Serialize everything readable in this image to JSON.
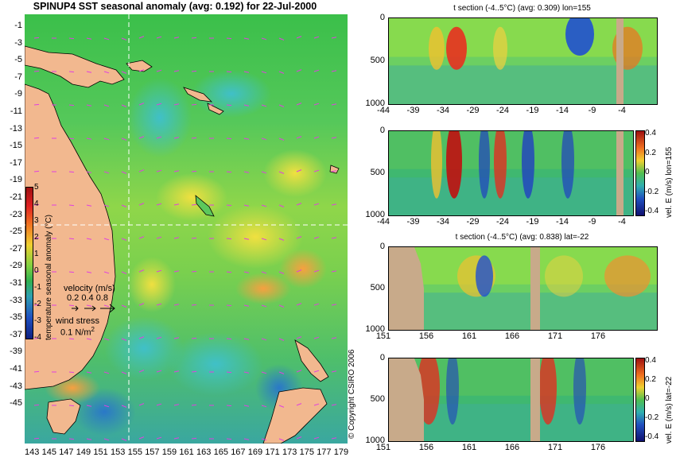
{
  "map": {
    "title": "SPINUP4 SST seasonal anomaly (avg: 0.192) for 22-Jul-2000",
    "lat_labels": [
      "-1",
      "-3",
      "-5",
      "-7",
      "-9",
      "-11",
      "-13",
      "-15",
      "-17",
      "-19",
      "-21",
      "-23",
      "-25",
      "-27",
      "-29",
      "-31",
      "-33",
      "-35",
      "-37",
      "-39",
      "-41",
      "-43",
      "-45"
    ],
    "lon_labels": [
      "143",
      "145",
      "147",
      "149",
      "151",
      "153",
      "155",
      "157",
      "159",
      "161",
      "163",
      "165",
      "167",
      "169",
      "171",
      "173",
      "175",
      "177",
      "179"
    ],
    "colorbar_ticks": [
      "5",
      "4",
      "3",
      "2",
      "1",
      "0",
      "-1",
      "-2",
      "-3",
      "-4"
    ],
    "colorbar_label": "temperature seasonal anomaly (°C)",
    "velocity_label": "velocity (m/s)",
    "velocity_scale": "0.2 0.4 0.8",
    "wind_label": "wind stress",
    "wind_scale": "0.1 N/m",
    "wind_scale_sup": "2",
    "copyright": "© Copyright CSIRO 2006",
    "crosshair_lon": 155,
    "crosshair_lat": -22
  },
  "panels": [
    {
      "title": "t section (-4..5°C) (avg: 0.309) lon=155",
      "y_ticks": [
        "0",
        "500",
        "1000"
      ],
      "x_ticks": [
        "-44",
        "-39",
        "-34",
        "-29",
        "-24",
        "-19",
        "-14",
        "-9",
        "-4"
      ],
      "colorbar": null
    },
    {
      "title": "",
      "y_ticks": [
        "0",
        "500",
        "1000"
      ],
      "x_ticks": [
        "-44",
        "-39",
        "-34",
        "-29",
        "-24",
        "-19",
        "-14",
        "-9",
        "-4"
      ],
      "colorbar": {
        "ticks": [
          "0.4",
          "0.2",
          "0",
          "-0.2",
          "-0.4"
        ],
        "label": "vel. E (m/s) lon=155"
      }
    },
    {
      "title": "t section (-4..5°C) (avg: 0.838) lat=-22",
      "y_ticks": [
        "0",
        "500",
        "1000"
      ],
      "x_ticks": [
        "151",
        "156",
        "161",
        "166",
        "171",
        "176"
      ],
      "colorbar": null
    },
    {
      "title": "",
      "y_ticks": [
        "0",
        "500",
        "1000"
      ],
      "x_ticks": [
        "151",
        "156",
        "161",
        "166",
        "171",
        "176"
      ],
      "colorbar": {
        "ticks": [
          "0.4",
          "0.2",
          "0",
          "-0.2",
          "-0.4"
        ],
        "label": "vel. E (m/s) lat=-22"
      }
    }
  ],
  "colors": {
    "land": "#f2b88f",
    "section_land": "#c8aa8a",
    "ocean_base": "#5fc85a",
    "crosshair": "#ffffff"
  }
}
